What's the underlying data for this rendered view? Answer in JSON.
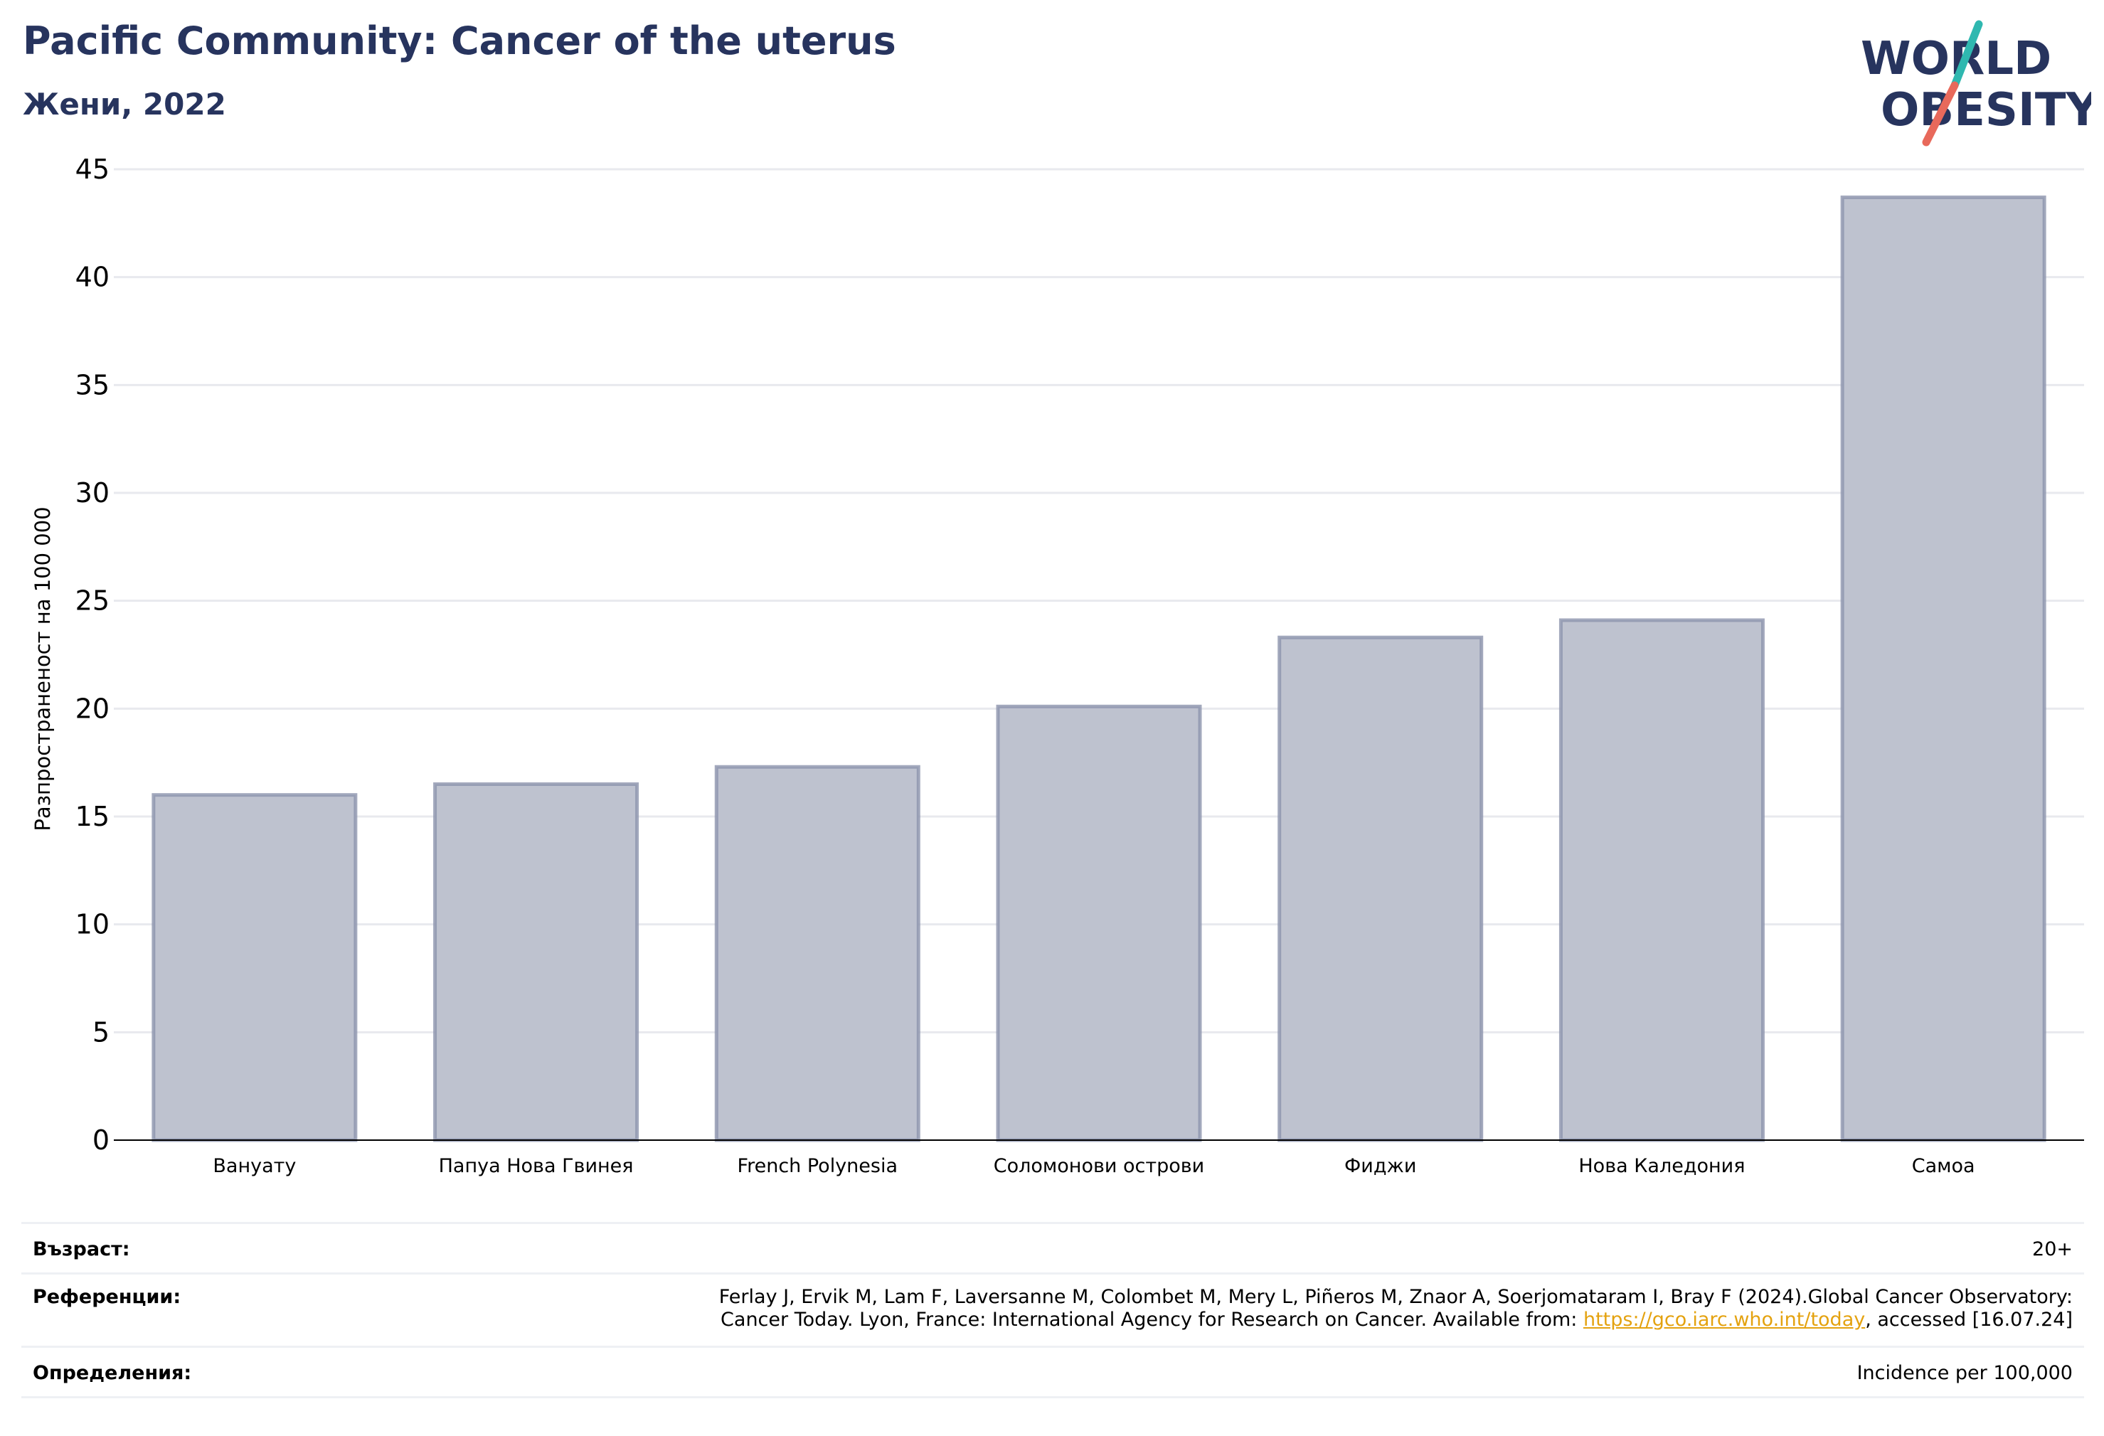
{
  "header": {
    "title": "Pacific Community: Cancer of the uterus",
    "subtitle": "Жени, 2022"
  },
  "logo": {
    "line1": "WORLD",
    "line2": "OBESITY"
  },
  "colors": {
    "title": "#27345e",
    "bar_fill": "#bec2cf",
    "bar_stroke": "#8c93ad",
    "grid": "#e8e9ee",
    "logo_teal": "#2fb8b0",
    "logo_coral": "#e8695b",
    "link": "#e4a20f"
  },
  "chart_data": {
    "type": "bar",
    "title": "Pacific Community: Cancer of the uterus",
    "subtitle": "Жени, 2022",
    "ylabel": "Разпространеност  на 100 000",
    "xlabel": "",
    "ylim": [
      0,
      45
    ],
    "yticks": [
      0,
      5,
      10,
      15,
      20,
      25,
      30,
      35,
      40,
      45
    ],
    "grid": true,
    "legend": "none",
    "categories": [
      "Вануату",
      "Папуа Нова Гвинея",
      "French Polynesia",
      "Соломонови острови",
      "Фиджи",
      "Нова Каледония",
      "Самоа"
    ],
    "values": [
      16.0,
      16.5,
      17.3,
      20.1,
      23.3,
      24.1,
      43.7
    ]
  },
  "footer": {
    "age_label": "Възраст:",
    "age_value": "20+",
    "refs_label": "Референции:",
    "refs_line1": "Ferlay J, Ervik M, Lam F, Laversanne M, Colombet M, Mery L, Piñeros M, Znaor A, Soerjomataram I, Bray F (2024).Global Cancer Observatory:",
    "refs_line2_before": "Cancer Today. Lyon, France: International Agency for Research on Cancer. Available from: ",
    "refs_link": "https://gco.iarc.who.int/today",
    "refs_line2_after": ", accessed [16.07.24]",
    "defs_label": "Определения:",
    "defs_value": "Incidence per 100,000"
  }
}
